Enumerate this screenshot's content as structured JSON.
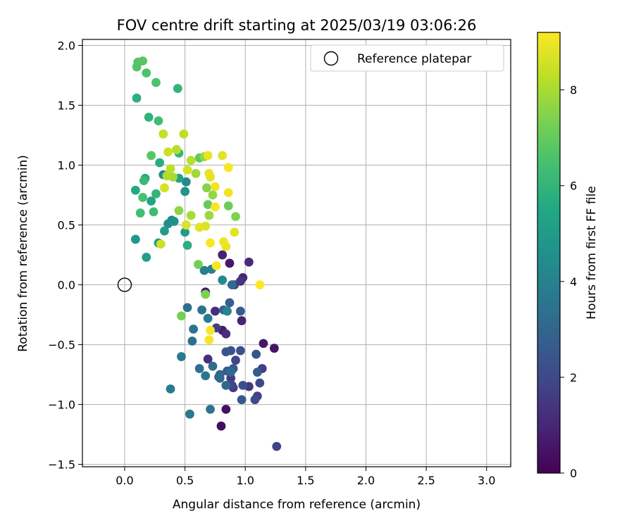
{
  "chart_data": {
    "type": "scatter",
    "title": "FOV centre drift starting at 2025/03/19 03:06:26",
    "xlabel": "Angular distance from reference (arcmin)",
    "ylabel": "Rotation from reference (arcmin)",
    "xlim": [
      -0.35,
      3.2
    ],
    "ylim": [
      -1.52,
      2.05
    ],
    "xticks": [
      0.0,
      0.5,
      1.0,
      1.5,
      2.0,
      2.5,
      3.0
    ],
    "xtick_labels": [
      "0.0",
      "0.5",
      "1.0",
      "1.5",
      "2.0",
      "2.5",
      "3.0"
    ],
    "yticks": [
      -1.5,
      -1.0,
      -0.5,
      0.0,
      0.5,
      1.0,
      1.5,
      2.0
    ],
    "ytick_labels": [
      "−1.5",
      "−1.0",
      "−0.5",
      "0.0",
      "0.5",
      "1.0",
      "1.5",
      "2.0"
    ],
    "grid": true,
    "legend": {
      "placement": "upper-right",
      "entries": [
        "Reference platepar"
      ]
    },
    "reference_point": {
      "x": 0.0,
      "y": 0.0,
      "marker": "open-circle"
    },
    "colorbar": {
      "label": "Hours from first FF file",
      "colormap": "viridis",
      "range": [
        0,
        9.2
      ],
      "ticks": [
        0,
        2,
        4,
        6,
        8
      ],
      "tick_labels": [
        "0",
        "2",
        "4",
        "6",
        "8"
      ]
    },
    "points": [
      {
        "x": 0.8,
        "y": -1.18,
        "h": 0.3
      },
      {
        "x": 0.84,
        "y": -1.04,
        "h": 0.4
      },
      {
        "x": 1.24,
        "y": -0.53,
        "h": 0.5
      },
      {
        "x": 1.15,
        "y": -0.49,
        "h": 0.6
      },
      {
        "x": 0.87,
        "y": 0.18,
        "h": 0.6
      },
      {
        "x": 0.81,
        "y": -0.38,
        "h": 0.7
      },
      {
        "x": 0.67,
        "y": -0.06,
        "h": 0.7
      },
      {
        "x": 0.81,
        "y": 0.25,
        "h": 0.9
      },
      {
        "x": 0.97,
        "y": -0.3,
        "h": 0.9
      },
      {
        "x": 0.98,
        "y": 0.06,
        "h": 1.0
      },
      {
        "x": 1.03,
        "y": 0.19,
        "h": 1.1
      },
      {
        "x": 0.84,
        "y": -0.41,
        "h": 1.2
      },
      {
        "x": 0.75,
        "y": -0.22,
        "h": 1.2
      },
      {
        "x": 0.69,
        "y": -0.62,
        "h": 1.3
      },
      {
        "x": 0.96,
        "y": 0.03,
        "h": 1.4
      },
      {
        "x": 0.9,
        "y": -0.86,
        "h": 1.5
      },
      {
        "x": 1.03,
        "y": -0.85,
        "h": 1.5
      },
      {
        "x": 0.88,
        "y": -0.78,
        "h": 1.6
      },
      {
        "x": 0.91,
        "y": 0.0,
        "h": 1.6
      },
      {
        "x": 1.14,
        "y": -0.7,
        "h": 1.7
      },
      {
        "x": 0.76,
        "y": -0.36,
        "h": 1.7
      },
      {
        "x": 1.26,
        "y": -1.35,
        "h": 1.8
      },
      {
        "x": 1.1,
        "y": -0.93,
        "h": 1.8
      },
      {
        "x": 0.92,
        "y": -0.63,
        "h": 1.9
      },
      {
        "x": 0.89,
        "y": -0.84,
        "h": 2.0
      },
      {
        "x": 1.12,
        "y": -0.82,
        "h": 2.0
      },
      {
        "x": 1.08,
        "y": -0.96,
        "h": 2.1
      },
      {
        "x": 0.98,
        "y": -0.84,
        "h": 2.2
      },
      {
        "x": 0.96,
        "y": -0.55,
        "h": 2.2
      },
      {
        "x": 0.88,
        "y": -0.55,
        "h": 2.3
      },
      {
        "x": 0.84,
        "y": -0.56,
        "h": 2.4
      },
      {
        "x": 1.09,
        "y": -0.58,
        "h": 2.4
      },
      {
        "x": 0.97,
        "y": -0.96,
        "h": 2.5
      },
      {
        "x": 0.9,
        "y": -0.7,
        "h": 2.5
      },
      {
        "x": 1.1,
        "y": -0.73,
        "h": 2.6
      },
      {
        "x": 0.85,
        "y": -0.72,
        "h": 2.6
      },
      {
        "x": 0.96,
        "y": -0.22,
        "h": 2.7
      },
      {
        "x": 0.87,
        "y": -0.15,
        "h": 2.8
      },
      {
        "x": 0.82,
        "y": -0.21,
        "h": 2.9
      },
      {
        "x": 0.79,
        "y": -0.75,
        "h": 3.0
      },
      {
        "x": 0.79,
        "y": -0.78,
        "h": 3.0
      },
      {
        "x": 0.84,
        "y": -0.84,
        "h": 3.1
      },
      {
        "x": 0.88,
        "y": -0.73,
        "h": 3.1
      },
      {
        "x": 0.78,
        "y": -0.77,
        "h": 3.2
      },
      {
        "x": 0.89,
        "y": 0.0,
        "h": 3.2
      },
      {
        "x": 0.73,
        "y": -0.68,
        "h": 3.3
      },
      {
        "x": 0.62,
        "y": -0.7,
        "h": 3.3
      },
      {
        "x": 0.56,
        "y": -0.47,
        "h": 3.4
      },
      {
        "x": 0.52,
        "y": -0.19,
        "h": 3.4
      },
      {
        "x": 0.57,
        "y": -0.37,
        "h": 3.5
      },
      {
        "x": 0.64,
        "y": -0.21,
        "h": 3.5
      },
      {
        "x": 0.67,
        "y": -0.76,
        "h": 3.6
      },
      {
        "x": 0.71,
        "y": -1.04,
        "h": 3.6
      },
      {
        "x": 0.54,
        "y": -1.08,
        "h": 3.7
      },
      {
        "x": 0.47,
        "y": -0.6,
        "h": 3.7
      },
      {
        "x": 0.38,
        "y": -0.87,
        "h": 3.8
      },
      {
        "x": 0.69,
        "y": -0.28,
        "h": 3.8
      },
      {
        "x": 0.66,
        "y": 0.12,
        "h": 3.9
      },
      {
        "x": 0.72,
        "y": 0.13,
        "h": 4.0
      },
      {
        "x": 0.85,
        "y": -0.22,
        "h": 4.2
      },
      {
        "x": 0.81,
        "y": 0.04,
        "h": 4.4
      },
      {
        "x": 0.39,
        "y": 0.54,
        "h": 4.2
      },
      {
        "x": 0.51,
        "y": 0.86,
        "h": 4.3
      },
      {
        "x": 0.32,
        "y": 0.92,
        "h": 4.3
      },
      {
        "x": 0.36,
        "y": 0.51,
        "h": 4.4
      },
      {
        "x": 0.41,
        "y": 0.53,
        "h": 4.6
      },
      {
        "x": 0.5,
        "y": 0.78,
        "h": 4.7
      },
      {
        "x": 0.09,
        "y": 0.38,
        "h": 4.8
      },
      {
        "x": 0.33,
        "y": 0.45,
        "h": 5.0
      },
      {
        "x": 0.5,
        "y": 0.44,
        "h": 5.1
      },
      {
        "x": 0.28,
        "y": 0.35,
        "h": 5.1
      },
      {
        "x": 0.18,
        "y": 0.23,
        "h": 5.2
      },
      {
        "x": 0.45,
        "y": 0.89,
        "h": 5.3
      },
      {
        "x": 0.22,
        "y": 0.7,
        "h": 5.4
      },
      {
        "x": 0.09,
        "y": 0.79,
        "h": 5.5
      },
      {
        "x": 0.17,
        "y": 0.89,
        "h": 5.6
      },
      {
        "x": 0.29,
        "y": 1.02,
        "h": 5.7
      },
      {
        "x": 0.52,
        "y": 0.33,
        "h": 5.8
      },
      {
        "x": 0.1,
        "y": 1.56,
        "h": 5.8
      },
      {
        "x": 0.2,
        "y": 1.4,
        "h": 5.9
      },
      {
        "x": 0.44,
        "y": 1.64,
        "h": 6.0
      },
      {
        "x": 0.26,
        "y": 0.76,
        "h": 6.0
      },
      {
        "x": 0.45,
        "y": 1.1,
        "h": 6.1
      },
      {
        "x": 0.16,
        "y": 0.87,
        "h": 6.2
      },
      {
        "x": 0.28,
        "y": 1.37,
        "h": 6.3
      },
      {
        "x": 0.24,
        "y": 0.61,
        "h": 6.3
      },
      {
        "x": 0.13,
        "y": 0.6,
        "h": 6.4
      },
      {
        "x": 0.15,
        "y": 0.73,
        "h": 6.5
      },
      {
        "x": 0.26,
        "y": 1.69,
        "h": 6.6
      },
      {
        "x": 0.18,
        "y": 1.77,
        "h": 6.6
      },
      {
        "x": 0.1,
        "y": 1.82,
        "h": 6.7
      },
      {
        "x": 0.11,
        "y": 1.86,
        "h": 6.7
      },
      {
        "x": 0.15,
        "y": 1.87,
        "h": 6.8
      },
      {
        "x": 0.22,
        "y": 1.08,
        "h": 6.8
      },
      {
        "x": 0.62,
        "y": 1.06,
        "h": 6.9
      },
      {
        "x": 0.69,
        "y": 0.67,
        "h": 7.0
      },
      {
        "x": 0.86,
        "y": 0.66,
        "h": 7.1
      },
      {
        "x": 0.61,
        "y": 0.17,
        "h": 7.2
      },
      {
        "x": 0.47,
        "y": -0.26,
        "h": 7.3
      },
      {
        "x": 0.67,
        "y": -0.08,
        "h": 7.4
      },
      {
        "x": 0.92,
        "y": 0.57,
        "h": 7.4
      },
      {
        "x": 0.68,
        "y": 0.81,
        "h": 7.5
      },
      {
        "x": 0.45,
        "y": 0.62,
        "h": 7.6
      },
      {
        "x": 0.66,
        "y": 1.07,
        "h": 7.7
      },
      {
        "x": 0.73,
        "y": 0.75,
        "h": 7.7
      },
      {
        "x": 0.7,
        "y": 0.58,
        "h": 7.8
      },
      {
        "x": 0.59,
        "y": 0.93,
        "h": 7.9
      },
      {
        "x": 0.55,
        "y": 0.58,
        "h": 8.0
      },
      {
        "x": 0.4,
        "y": 0.9,
        "h": 8.0
      },
      {
        "x": 0.35,
        "y": 0.91,
        "h": 8.1
      },
      {
        "x": 0.55,
        "y": 1.04,
        "h": 8.2
      },
      {
        "x": 0.43,
        "y": 1.13,
        "h": 8.2
      },
      {
        "x": 0.38,
        "y": 0.97,
        "h": 8.3
      },
      {
        "x": 0.49,
        "y": 1.26,
        "h": 8.3
      },
      {
        "x": 0.32,
        "y": 1.26,
        "h": 8.4
      },
      {
        "x": 0.36,
        "y": 1.11,
        "h": 8.5
      },
      {
        "x": 0.3,
        "y": 0.34,
        "h": 8.5
      },
      {
        "x": 0.33,
        "y": 0.81,
        "h": 8.6
      },
      {
        "x": 0.52,
        "y": 0.96,
        "h": 8.6
      },
      {
        "x": 0.51,
        "y": 0.5,
        "h": 8.7
      },
      {
        "x": 0.67,
        "y": 0.49,
        "h": 8.7
      },
      {
        "x": 0.62,
        "y": 0.48,
        "h": 8.8
      },
      {
        "x": 0.71,
        "y": 0.9,
        "h": 8.8
      },
      {
        "x": 0.81,
        "y": 1.08,
        "h": 8.8
      },
      {
        "x": 0.69,
        "y": 1.08,
        "h": 8.9
      },
      {
        "x": 0.7,
        "y": 0.93,
        "h": 8.9
      },
      {
        "x": 0.86,
        "y": 0.77,
        "h": 9.0
      },
      {
        "x": 0.75,
        "y": 0.82,
        "h": 9.0
      },
      {
        "x": 0.91,
        "y": 0.44,
        "h": 8.8
      },
      {
        "x": 0.84,
        "y": 0.32,
        "h": 8.9
      },
      {
        "x": 0.82,
        "y": 0.36,
        "h": 9.0
      },
      {
        "x": 0.86,
        "y": 0.98,
        "h": 9.1
      },
      {
        "x": 0.75,
        "y": 0.65,
        "h": 9.1
      },
      {
        "x": 0.71,
        "y": 0.35,
        "h": 9.1
      },
      {
        "x": 0.76,
        "y": 0.16,
        "h": 9.1
      },
      {
        "x": 0.71,
        "y": -0.38,
        "h": 9.1
      },
      {
        "x": 0.7,
        "y": -0.46,
        "h": 9.1
      },
      {
        "x": 1.12,
        "y": 0.0,
        "h": 9.2
      }
    ]
  }
}
